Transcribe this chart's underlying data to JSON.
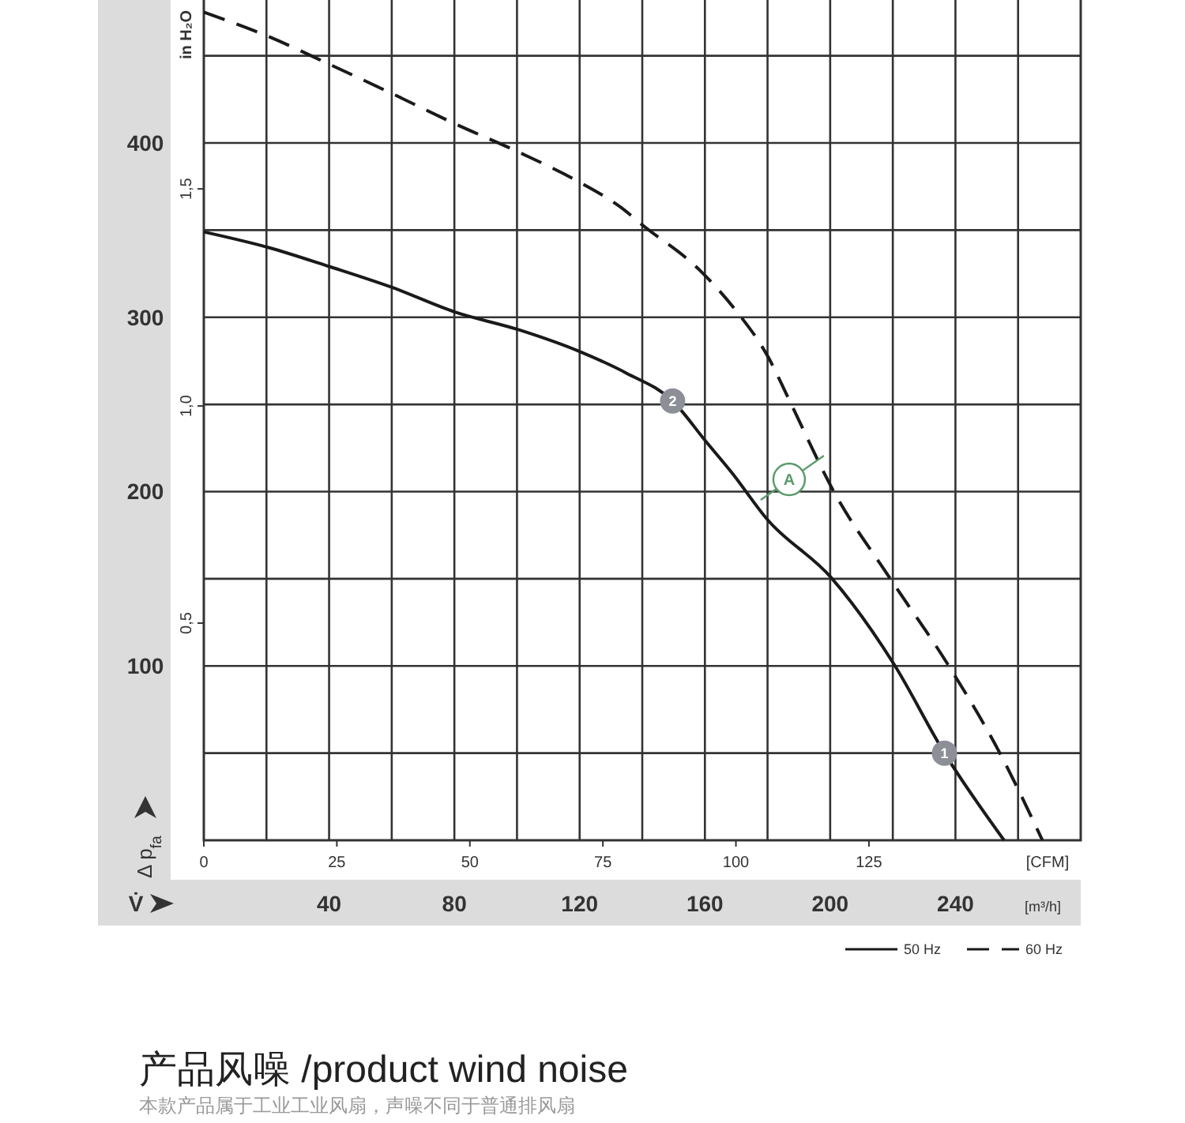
{
  "chart_data": {
    "type": "line",
    "ylabel": "Δ p$_{fa}$",
    "y2label": "in H₂O",
    "xlabel": "[CFM]",
    "x2label": "[m³/h]",
    "xlim": [
      0,
      164.8
    ],
    "xticks": [
      0,
      25,
      50,
      75,
      100,
      125
    ],
    "x2lim": [
      0,
      280
    ],
    "x2ticks": [
      {
        "value": 20,
        "label": null
      },
      40,
      {
        "value": 60,
        "label": null
      },
      80,
      {
        "value": 100,
        "label": null
      },
      120,
      {
        "value": 140,
        "label": null
      },
      160,
      {
        "value": 180,
        "label": null
      },
      200,
      {
        "value": 220,
        "label": null
      },
      240,
      {
        "value": 260,
        "label": null
      }
    ],
    "ylim": [
      0,
      482
    ],
    "yticks": [
      {
        "value": 50,
        "label": null
      },
      100,
      {
        "value": 150,
        "label": null
      },
      200,
      {
        "value": 250,
        "label": null
      },
      300,
      {
        "value": 350,
        "label": null
      },
      400,
      {
        "value": 450,
        "label": null
      }
    ],
    "y2lim": [
      0,
      1.935
    ],
    "y2ticks": [
      {
        "value": 0.5,
        "label": "0,5"
      },
      {
        "value": 1,
        "label": "1,0"
      },
      {
        "value": 1.5,
        "label": "1,5"
      }
    ],
    "grid": true,
    "legend": "bottom right",
    "marker": "none",
    "series": [
      {
        "name": "50 Hz",
        "color": "#1a1a1a",
        "line_style": "solid",
        "x": [
          0,
          12.2,
          23.7,
          35.5,
          47.2,
          59,
          70.9,
          79.4,
          88.1,
          94.3,
          99.2,
          105.9,
          117.8,
          129.7,
          139.2,
          150.4
        ],
        "values": [
          349,
          340,
          329,
          317,
          303,
          293,
          280,
          268,
          252,
          229,
          211,
          184,
          151,
          101,
          50,
          0
        ]
      },
      {
        "name": "60 Hz",
        "color": "#1a1a1a",
        "line_style": "dashed",
        "x": [
          0,
          12.2,
          23.7,
          35.6,
          47.2,
          59,
          70.9,
          78.4,
          82.4,
          93.2,
          99.7,
          106.1,
          110.1,
          118.4,
          128.8,
          139.8,
          149.6,
          157.6
        ],
        "values": [
          475,
          461,
          445,
          428,
          411,
          395,
          377,
          363,
          353,
          327,
          305,
          277,
          252,
          200,
          151,
          101,
          50,
          0
        ]
      }
    ],
    "annotations": [
      {
        "text": "1",
        "x": 139.2,
        "y": 50
      },
      {
        "text": "2",
        "x": 88.1,
        "y": 252
      },
      {
        "text": "A",
        "x": 110,
        "y": 207
      },
      "V̇",
      "产品风噪 /product wind noise",
      "本款产品属于工业工业风扇，声噪不同于普通排风扇"
    ]
  }
}
